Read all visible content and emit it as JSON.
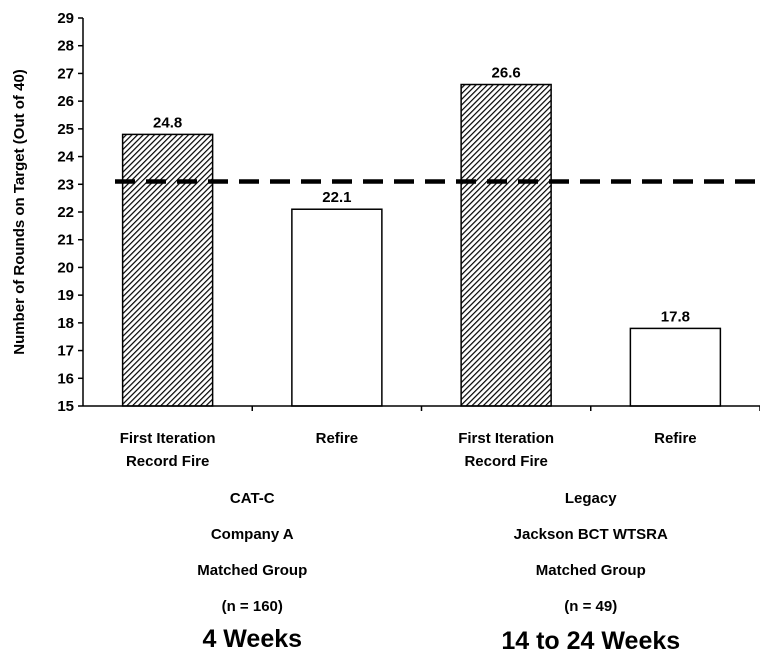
{
  "chart_data": {
    "type": "bar",
    "ylabel": "Number of Rounds on Target (Out of 40)",
    "ylim": [
      15,
      29
    ],
    "yticks": [
      15,
      16,
      17,
      18,
      19,
      20,
      21,
      22,
      23,
      24,
      25,
      26,
      27,
      28,
      29
    ],
    "grid": false,
    "reference_line": {
      "value": 23.1,
      "style": "dashed",
      "color": "#000000"
    },
    "categories": [
      "First Iteration\nRecord Fire",
      "Refire",
      "First Iteration\nRecord Fire",
      "Refire"
    ],
    "values": [
      24.8,
      22.1,
      26.6,
      17.8
    ],
    "data_labels": [
      "24.8",
      "22.1",
      "26.6",
      "17.8"
    ],
    "bar_styles": [
      "hatched",
      "white",
      "hatched",
      "white"
    ],
    "groups": [
      {
        "lines": [
          "CAT-C",
          "Company A",
          "Matched Group",
          "(n = 160)"
        ],
        "duration": "4 Weeks"
      },
      {
        "lines": [
          "Legacy",
          "Jackson BCT WTSRA",
          "Matched Group",
          "(n = 49)"
        ],
        "duration": "14 to 24 Weeks"
      }
    ]
  }
}
